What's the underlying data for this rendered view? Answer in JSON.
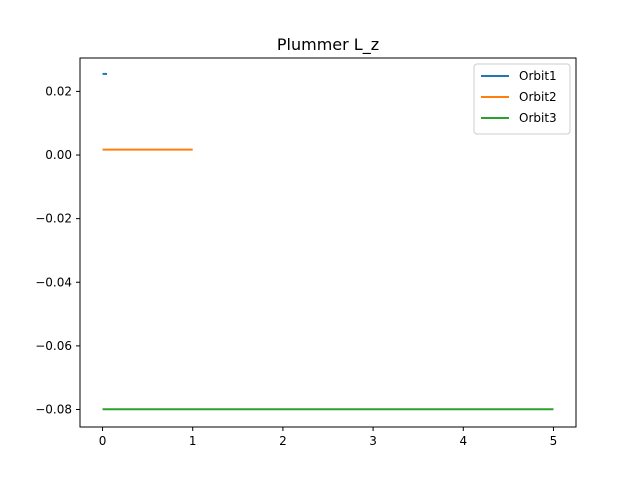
{
  "chart_data": {
    "type": "line",
    "title": "Plummer L_z",
    "xlabel": "",
    "ylabel": "",
    "xlim": [
      -0.25,
      5.25
    ],
    "ylim": [
      -0.0855,
      0.0305
    ],
    "xticks": [
      0,
      1,
      2,
      3,
      4,
      5
    ],
    "xtick_labels": [
      "0",
      "1",
      "2",
      "3",
      "4",
      "5"
    ],
    "yticks": [
      0.02,
      0.0,
      -0.02,
      -0.04,
      -0.06,
      -0.08
    ],
    "ytick_labels": [
      "0.02",
      "0.00",
      "−0.02",
      "−0.04",
      "−0.06",
      "−0.08"
    ],
    "grid": false,
    "legend_position": "top-right",
    "series": [
      {
        "name": "Orbit1",
        "color": "#1f77b4",
        "x": [
          0,
          0.05
        ],
        "y": [
          0.0255,
          0.0255
        ]
      },
      {
        "name": "Orbit2",
        "color": "#ff7f0e",
        "x": [
          0,
          1.0
        ],
        "y": [
          0.0017,
          0.0017
        ]
      },
      {
        "name": "Orbit3",
        "color": "#2ca02c",
        "x": [
          0,
          5.0
        ],
        "y": [
          -0.0799,
          -0.0799
        ]
      }
    ]
  }
}
